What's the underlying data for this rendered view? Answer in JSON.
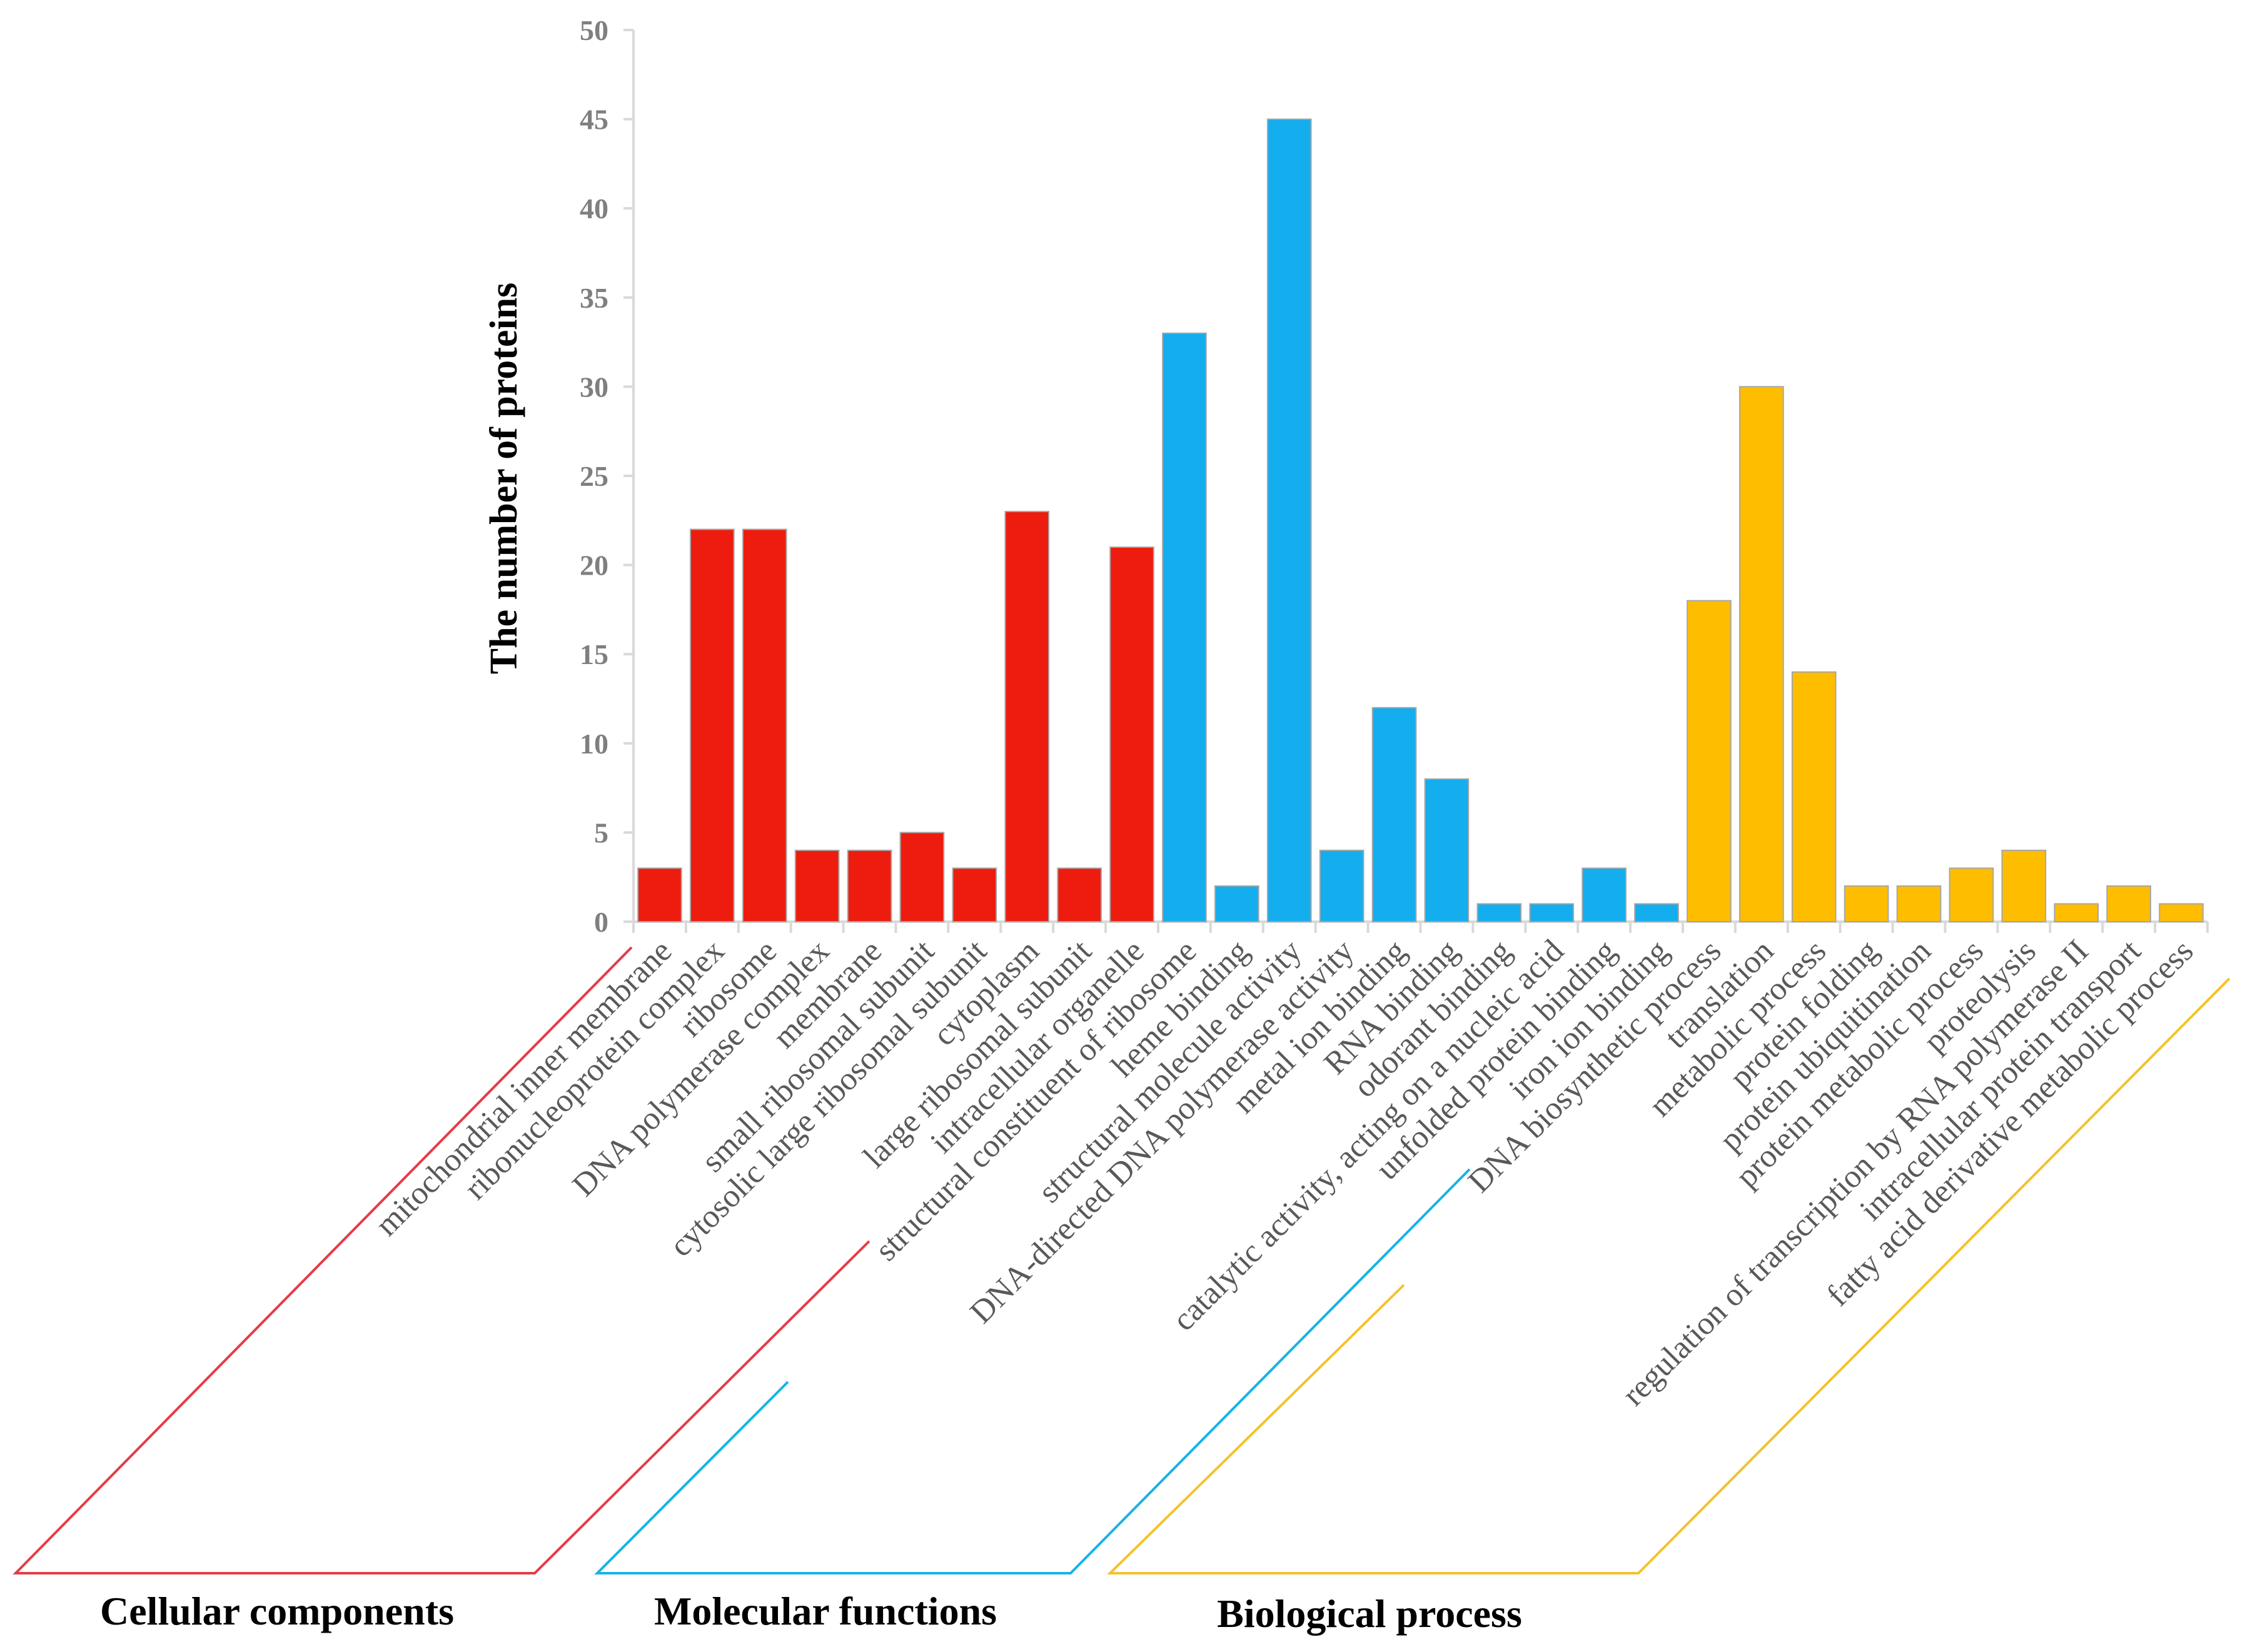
{
  "chart_data": {
    "type": "bar",
    "title": "",
    "xlabel": "",
    "ylabel": "The number of proteins",
    "ylim": [
      0,
      50
    ],
    "yticks": [
      0,
      5,
      10,
      15,
      20,
      25,
      30,
      35,
      40,
      45,
      50
    ],
    "grid": false,
    "legend": "none",
    "groups": [
      {
        "name": "Cellular components",
        "color": "#ee1c0e"
      },
      {
        "name": "Molecular functions",
        "color": "#14aeef"
      },
      {
        "name": "Biological process",
        "color": "#ffbd00"
      }
    ],
    "group_outline_colors": [
      "#e63b46",
      "#16b3e6",
      "#f5c22b"
    ],
    "categories": [
      "mitochondrial inner membrane",
      "ribonucleoprotein complex",
      "ribosome",
      "DNA polymerase complex",
      "membrane",
      "small ribosomal subunit",
      "cytosolic large ribosomal subunit",
      "cytoplasm",
      "large ribosomal subunit",
      "intracellular organelle",
      "structural constituent of ribosome",
      "heme binding",
      "structural molecule activity",
      "DNA-directed DNA polymerase activity",
      "metal ion binding",
      "RNA binding",
      "odorant binding",
      "catalytic activity, acting on a nucleic acid",
      "unfolded protein binding",
      "iron ion binding",
      "DNA biosynthetic process",
      "translation",
      "metabolic process",
      "protein folding",
      "protein ubiquitination",
      "protein metabolic process",
      "proteolysis",
      "regulation of transcription by RNA polymerase II",
      "intracellular protein transport",
      "fatty acid derivative metabolic process"
    ],
    "values": [
      3,
      22,
      22,
      4,
      4,
      5,
      3,
      23,
      3,
      21,
      33,
      2,
      45,
      4,
      12,
      8,
      1,
      1,
      3,
      1,
      18,
      30,
      14,
      2,
      2,
      3,
      4,
      1,
      2,
      1
    ],
    "category_group": [
      0,
      0,
      0,
      0,
      0,
      0,
      0,
      0,
      0,
      0,
      1,
      1,
      1,
      1,
      1,
      1,
      1,
      1,
      1,
      1,
      2,
      2,
      2,
      2,
      2,
      2,
      2,
      2,
      2,
      2
    ]
  }
}
